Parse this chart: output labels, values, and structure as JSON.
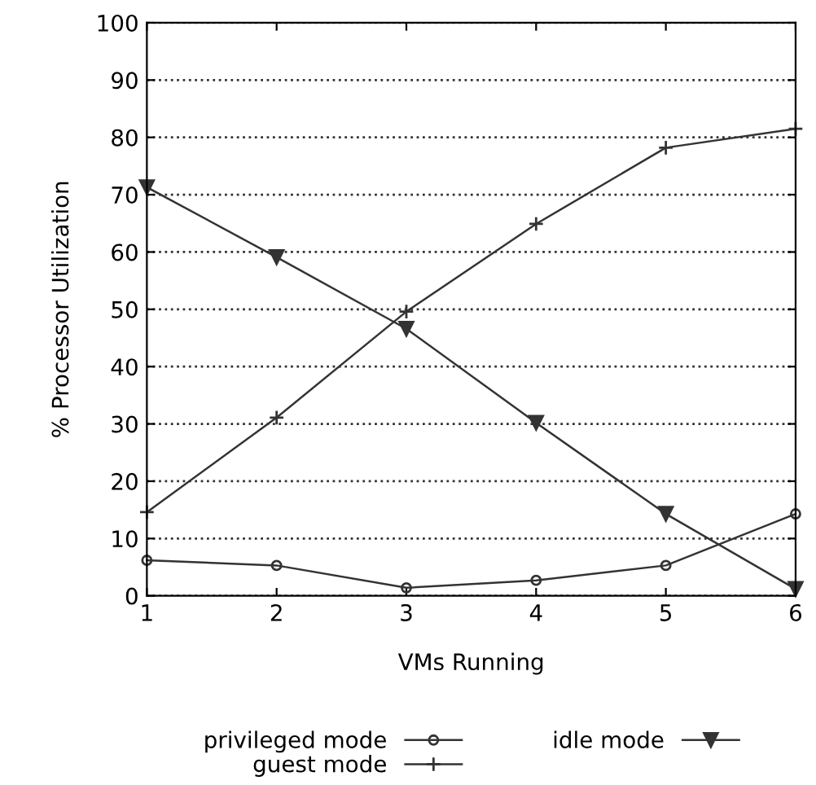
{
  "chart_data": {
    "type": "line",
    "xlabel": "VMs Running",
    "ylabel": "% Processor Utilization",
    "x": [
      1,
      2,
      3,
      4,
      5,
      6
    ],
    "xlim": [
      1,
      6
    ],
    "xticks": [
      1,
      2,
      3,
      4,
      5,
      6
    ],
    "ylim": [
      0,
      100
    ],
    "yticks": [
      0,
      10,
      20,
      30,
      40,
      50,
      60,
      70,
      80,
      90,
      100
    ],
    "grid": "y",
    "legend": "bottom",
    "line_style": "solid",
    "series": [
      {
        "name": "privileged mode",
        "color": "#333333",
        "marker": "circle",
        "values": [
          6.2,
          5.3,
          1.4,
          2.7,
          5.3,
          14.3
        ]
      },
      {
        "name": "guest mode",
        "color": "#333333",
        "marker": "cross",
        "values": [
          14.6,
          31.1,
          49.6,
          64.9,
          78.2,
          81.5
        ]
      },
      {
        "name": "idle mode",
        "color": "#333333",
        "marker": "triangle",
        "values": [
          71.3,
          59.1,
          46.6,
          30.2,
          14.3,
          1.2
        ]
      }
    ]
  }
}
